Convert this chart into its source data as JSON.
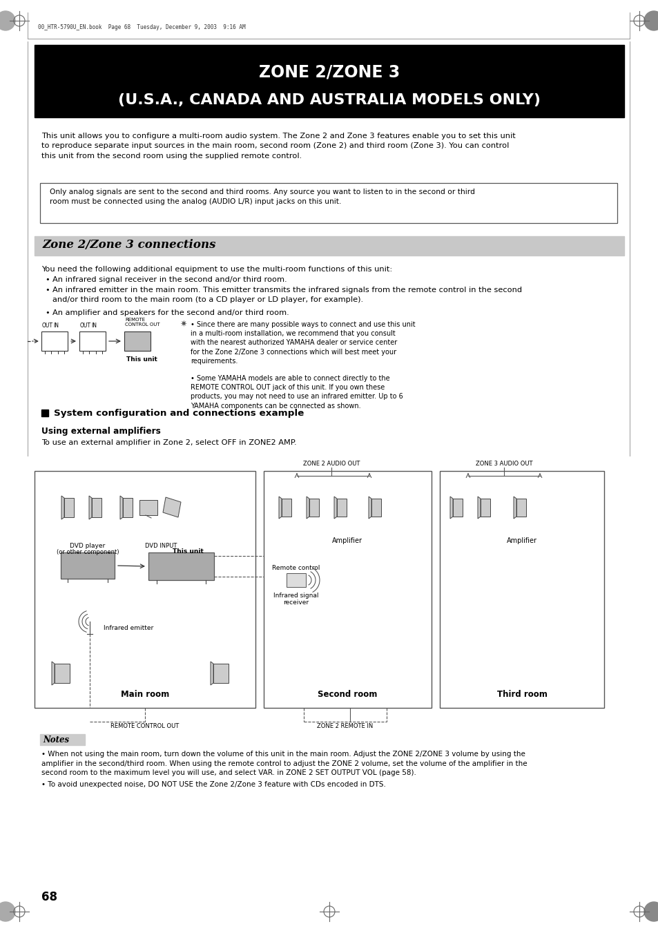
{
  "page_bg": "#ffffff",
  "header_bg": "#000000",
  "header_text_color": "#ffffff",
  "header_line1": "ZONE 2/ZONE 3",
  "header_line2": "(U.S.A., CANADA AND AUSTRALIA MODELS ONLY)",
  "header_font_size": 17,
  "section_bg": "#cccccc",
  "section_title": "Zone 2/Zone 3 connections",
  "section_title_fontsize": 12,
  "body_fontsize": 8.2,
  "small_fontsize": 7.5,
  "top_file_text": "00_HTR-5790U_EN.book  Page 68  Tuesday, December 9, 2003  9:16 AM",
  "page_number": "68",
  "intro_text": "This unit allows you to configure a multi-room audio system. The Zone 2 and Zone 3 features enable you to set this unit\nto reproduce separate input sources in the main room, second room (Zone 2) and third room (Zone 3). You can control\nthis unit from the second room using the supplied remote control.",
  "box_text": "Only analog signals are sent to the second and third rooms. Any source you want to listen to in the second or third\nroom must be connected using the analog (AUDIO L/R) input jacks on this unit.",
  "bullet_intro": "You need the following additional equipment to use the multi-room functions of this unit:",
  "bullet1": "An infrared signal receiver in the second and/or third room.",
  "bullet2": "An infrared emitter in the main room. This emitter transmits the infrared signals from the remote control in the second\nand/or third room to the main room (to a CD player or LD player, for example).",
  "bullet3": "An amplifier and speakers for the second and/or third room.",
  "tip1": "Since there are many possible ways to connect and use this unit\nin a multi-room installation, we recommend that you consult\nwith the nearest authorized YAMAHA dealer or service center\nfor the Zone 2/Zone 3 connections which will best meet your\nrequirements.",
  "tip2": "Some YAMAHA models are able to connect directly to the\nREMOTE CONTROL OUT jack of this unit. If you own these\nproducts, you may not need to use an infrared emitter. Up to 6\nYAMAHA components can be connected as shown.",
  "system_heading": "System configuration and connections example",
  "using_ext_heading": "Using external amplifiers",
  "using_ext_text": "To use an external amplifier in Zone 2, select OFF in ZONE2 AMP.",
  "notes_title": "Notes",
  "note1": "When not using the main room, turn down the volume of this unit in the main room. Adjust the ZONE 2/ZONE 3 volume by using the\namplifier in the second/third room. When using the remote control to adjust the ZONE 2 volume, set the volume of the amplifier in the\nsecond room to the maximum level you will use, and select VAR. in ZONE 2 SET OUTPUT VOL (page 58).",
  "note2": "To avoid unexpected noise, DO NOT USE the Zone 2/Zone 3 feature with CDs encoded in DTS."
}
